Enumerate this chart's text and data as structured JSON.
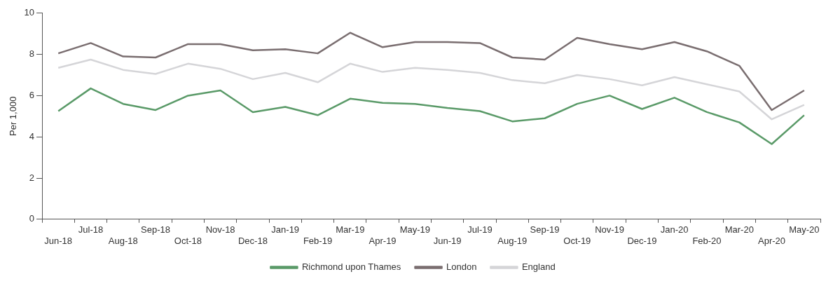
{
  "chart_data": {
    "type": "line",
    "ylabel": "Per 1,000",
    "categories": [
      "Jun-18",
      "Jul-18",
      "Aug-18",
      "Sep-18",
      "Oct-18",
      "Nov-18",
      "Dec-18",
      "Jan-19",
      "Feb-19",
      "Mar-19",
      "Apr-19",
      "May-19",
      "Jun-19",
      "Jul-19",
      "Aug-19",
      "Sep-19",
      "Oct-19",
      "Nov-19",
      "Dec-19",
      "Jan-20",
      "Feb-20",
      "Mar-20",
      "Apr-20",
      "May-20"
    ],
    "series": [
      {
        "name": "Richmond upon Thames",
        "color": "#5a9a68",
        "values": [
          5.25,
          6.35,
          5.6,
          5.3,
          6.0,
          6.25,
          5.2,
          5.45,
          5.05,
          5.85,
          5.65,
          5.6,
          5.4,
          5.25,
          4.75,
          4.9,
          5.6,
          6.0,
          5.35,
          5.9,
          5.2,
          4.7,
          3.65,
          5.05
        ]
      },
      {
        "name": "London",
        "color": "#7a6e70",
        "values": [
          8.05,
          8.55,
          7.9,
          7.85,
          8.5,
          8.5,
          8.2,
          8.25,
          8.05,
          9.05,
          8.35,
          8.6,
          8.6,
          8.55,
          7.85,
          7.75,
          8.8,
          8.5,
          8.25,
          8.6,
          8.15,
          7.45,
          5.3,
          6.25
        ]
      },
      {
        "name": "England",
        "color": "#d5d5d8",
        "values": [
          7.35,
          7.75,
          7.25,
          7.05,
          7.55,
          7.3,
          6.8,
          7.1,
          6.65,
          7.55,
          7.15,
          7.35,
          7.25,
          7.1,
          6.75,
          6.6,
          7.0,
          6.8,
          6.5,
          6.9,
          6.55,
          6.2,
          4.85,
          5.55
        ]
      }
    ],
    "ylim": [
      0,
      10
    ],
    "yticks": [
      0,
      2,
      4,
      6,
      8,
      10
    ],
    "grid": false,
    "legend": "bottom",
    "marker": "none",
    "line_style": "solid"
  }
}
